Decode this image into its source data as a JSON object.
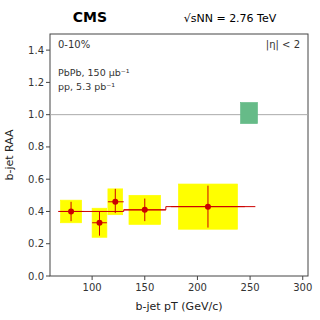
{
  "chart_data": {
    "type": "scatter",
    "title": "CMS",
    "subtitle": "√sNN = 2.76 TeV",
    "x_label": "b-jet pT (GeV/c)",
    "y_label": "b-jet RAA",
    "annotations": [
      "0-10%",
      "|η| < 2",
      "PbPb, 150 μb⁻¹",
      "pp, 5.3 pb⁻¹"
    ],
    "xlim": [
      60,
      305
    ],
    "ylim": [
      0,
      1.5
    ],
    "xticks": [
      100,
      150,
      200,
      250,
      300
    ],
    "yticks": [
      {
        "value": 0,
        "label": "0.0"
      },
      0.2,
      0.4,
      0.6,
      0.8,
      {
        "value": 1.0,
        "label": "1.0"
      },
      1.2,
      1.4
    ],
    "grid": false,
    "series": [
      {
        "type": "hline",
        "color": "#aaaaaa",
        "values": [
          1.0
        ]
      },
      {
        "type": "box",
        "color": "#ffff00",
        "x": [
          80,
          107,
          122,
          150,
          210
        ],
        "values": [
          0.4,
          0.33,
          0.46,
          0.41,
          0.43
        ],
        "error_low": [
          0.07,
          0.09,
          0.08,
          0.09,
          0.14
        ],
        "error_high": [
          0.07,
          0.09,
          0.08,
          0.09,
          0.14
        ],
        "half_width": [
          10,
          7,
          7,
          15,
          28
        ]
      },
      {
        "type": "step",
        "color": "#cc0000",
        "x": [
          68,
          130,
          130,
          170,
          170,
          255
        ],
        "values": [
          0.4,
          0.4,
          0.41,
          0.41,
          0.43,
          0.43
        ]
      },
      {
        "type": "box",
        "color": "#66bb88",
        "x": [
          249
        ],
        "values": [
          1.01
        ],
        "error_low": [
          0.065
        ],
        "error_high": [
          0.065
        ],
        "half_width": [
          8
        ]
      },
      {
        "type": "scatter",
        "color": "#cc0000",
        "x": [
          80,
          107,
          122,
          150,
          210
        ],
        "values": [
          0.4,
          0.33,
          0.46,
          0.41,
          0.43
        ],
        "error_low": [
          0.06,
          0.08,
          0.07,
          0.07,
          0.13
        ],
        "error_high": [
          0.06,
          0.07,
          0.08,
          0.07,
          0.13
        ],
        "x_error_low": [
          12,
          7,
          7,
          20,
          35
        ],
        "x_error_high": [
          12,
          7,
          8,
          20,
          35
        ]
      }
    ]
  }
}
